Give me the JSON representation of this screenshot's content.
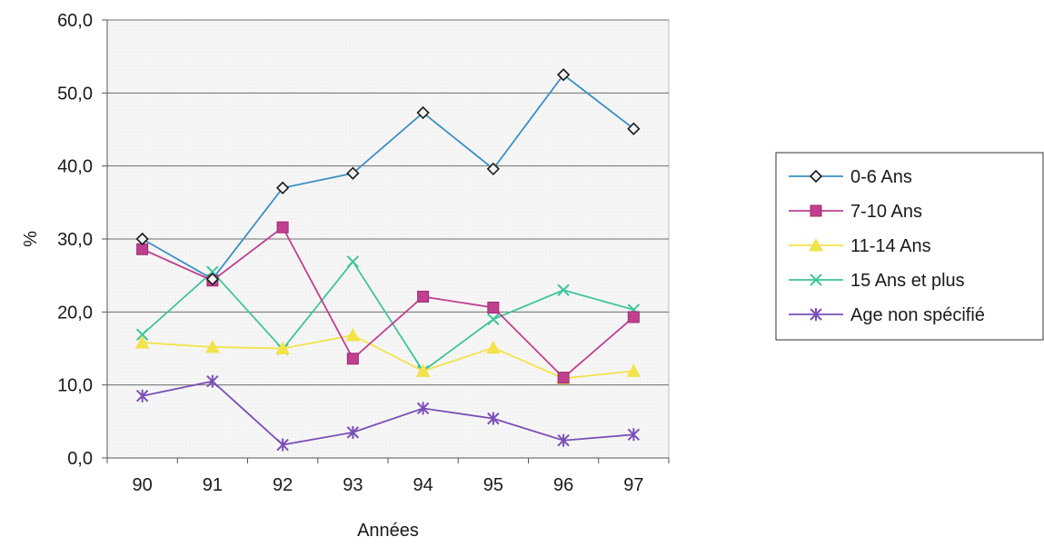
{
  "chart_data": {
    "type": "line",
    "title": "",
    "xlabel": "Années",
    "ylabel": "%",
    "categories": [
      "90",
      "91",
      "92",
      "93",
      "94",
      "95",
      "96",
      "97"
    ],
    "y_ticks": [
      "0,0",
      "10,0",
      "20,0",
      "30,0",
      "40,0",
      "50,0",
      "60,0"
    ],
    "ylim": [
      0,
      60
    ],
    "grid": "horizontal",
    "legend_position": "right",
    "series": [
      {
        "name": "0-6 Ans",
        "values": [
          30.0,
          24.5,
          37.0,
          39.0,
          47.3,
          39.6,
          52.5,
          45.1
        ],
        "color": "#3b8fc4",
        "marker": "diamond"
      },
      {
        "name": "7-10 Ans",
        "values": [
          28.6,
          24.3,
          31.6,
          13.6,
          22.1,
          20.6,
          11.0,
          19.3
        ],
        "color": "#c0408f",
        "marker": "square"
      },
      {
        "name": "11-14 Ans",
        "values": [
          15.8,
          15.2,
          15.0,
          16.8,
          11.9,
          15.1,
          10.9,
          11.9
        ],
        "color": "#f2e34a",
        "marker": "triangle"
      },
      {
        "name": "15 Ans et plus",
        "values": [
          16.9,
          25.5,
          14.9,
          26.9,
          11.9,
          19.0,
          23.0,
          20.3
        ],
        "color": "#3fc59a",
        "marker": "x"
      },
      {
        "name": "Age non spécifié",
        "values": [
          8.5,
          10.5,
          1.8,
          3.5,
          6.8,
          5.4,
          2.4,
          3.2
        ],
        "color": "#7a4fb8",
        "marker": "star"
      }
    ]
  }
}
